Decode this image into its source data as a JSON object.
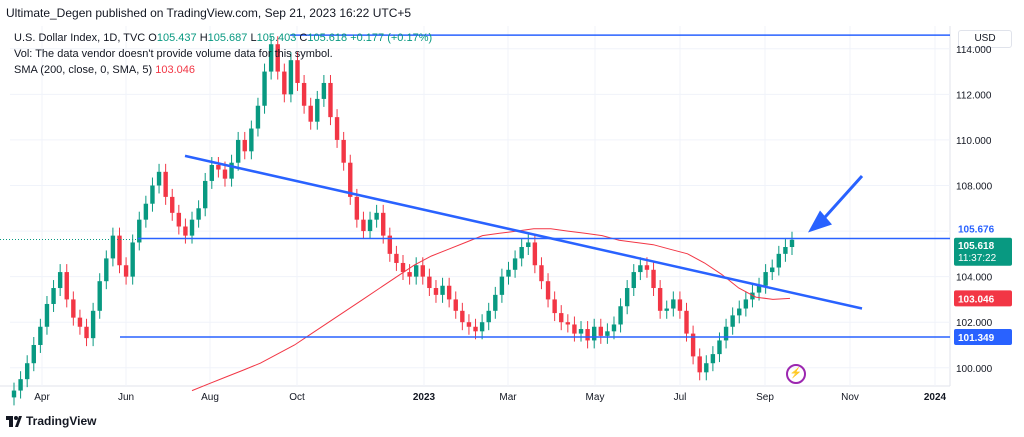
{
  "publisher": {
    "text": "Ultimate_Degen published on TradingView.com, Sep 21, 2023 16:22 UTC+5"
  },
  "legend": {
    "symbol": "U.S. Dollar Index, 1D, TVC",
    "o_label": "O",
    "o_value": "105.437",
    "h_label": "H",
    "h_value": "105.687",
    "l_label": "L",
    "l_value": "105.403",
    "c_label": "C",
    "c_value": "105.618",
    "change": "+0.177 (+0.17%)",
    "vol_note": "Vol: The data vendor doesn't provide volume data for this symbol.",
    "sma_label": "SMA (200, close, 0, SMA, 5)",
    "sma_value": "103.046"
  },
  "currency_button": "USD",
  "footer": {
    "brand": "TradingView"
  },
  "colors": {
    "up": "#089981",
    "down": "#f23645",
    "trend": "#2962ff",
    "sma": "#f23645",
    "grid": "#f0f3fa",
    "hline": "#2962ff"
  },
  "chart_data": {
    "type": "candlestick",
    "symbol": "U.S. Dollar Index",
    "timeframe": "1D",
    "x_ticks": [
      "Apr",
      "Jun",
      "Aug",
      "Oct",
      "2023",
      "Mar",
      "May",
      "Jul",
      "Sep",
      "Nov",
      "2024"
    ],
    "y_ticks": [
      "114.000",
      "112.000",
      "110.000",
      "108.000",
      "106.000",
      "104.000",
      "102.000",
      "100.000"
    ],
    "ylim": [
      99.2,
      115.0
    ],
    "close_series_approx": [
      99.0,
      99.5,
      100.2,
      101.0,
      101.8,
      102.8,
      103.5,
      104.2,
      103.0,
      102.2,
      101.8,
      101.3,
      102.5,
      103.8,
      104.8,
      105.8,
      104.5,
      104.0,
      105.5,
      106.5,
      107.2,
      108.0,
      108.6,
      107.5,
      106.8,
      106.2,
      105.8,
      106.5,
      107.0,
      108.2,
      108.9,
      108.7,
      108.3,
      109.0,
      110.0,
      109.5,
      110.5,
      111.5,
      113.0,
      114.2,
      113.0,
      112.0,
      113.5,
      112.5,
      111.5,
      110.8,
      111.8,
      112.5,
      111.0,
      110.0,
      109.0,
      107.5,
      106.5,
      106.0,
      106.5,
      106.8,
      105.8,
      105.0,
      104.6,
      104.2,
      104.0,
      104.5,
      104.0,
      103.5,
      103.2,
      103.6,
      103.0,
      102.5,
      102.0,
      101.8,
      101.6,
      102.0,
      102.5,
      103.2,
      104.0,
      104.3,
      104.8,
      105.3,
      105.5,
      104.5,
      103.8,
      103.0,
      102.4,
      102.0,
      101.9,
      101.5,
      101.7,
      101.2,
      101.8,
      101.4,
      101.6,
      101.9,
      102.7,
      103.5,
      104.2,
      104.5,
      104.3,
      103.5,
      102.5,
      102.6,
      103.0,
      102.5,
      101.5,
      100.5,
      99.8,
      100.2,
      100.6,
      101.2,
      101.8,
      102.3,
      102.6,
      103.0,
      103.3,
      103.6,
      104.2,
      104.4,
      105.0,
      105.3,
      105.618
    ],
    "sma_series_approx": [
      99.0,
      99.3,
      99.6,
      99.9,
      100.2,
      100.6,
      101.0,
      101.5,
      102.0,
      102.5,
      103.0,
      103.5,
      104.0,
      104.5,
      104.9,
      105.2,
      105.5,
      105.8,
      105.9,
      106.0,
      106.1,
      106.1,
      106.0,
      105.9,
      105.8,
      105.6,
      105.5,
      105.4,
      105.2,
      105.0,
      104.6,
      104.1,
      103.5,
      103.1,
      103.0,
      103.046
    ],
    "horizontal_levels": [
      114.6,
      105.676,
      101.349
    ],
    "price_labels": {
      "last_high": "105.676",
      "last_close": "105.618",
      "countdown": "11:37:22",
      "sma": "103.046",
      "support": "101.349"
    },
    "trendline": {
      "label": "",
      "from": {
        "date": "2022-07-14",
        "price": 109.3
      },
      "to": {
        "date": "2023-11-10",
        "price": 102.6
      }
    },
    "annotation_arrow": {
      "direction": "down-left",
      "target_price": 105.676
    }
  }
}
